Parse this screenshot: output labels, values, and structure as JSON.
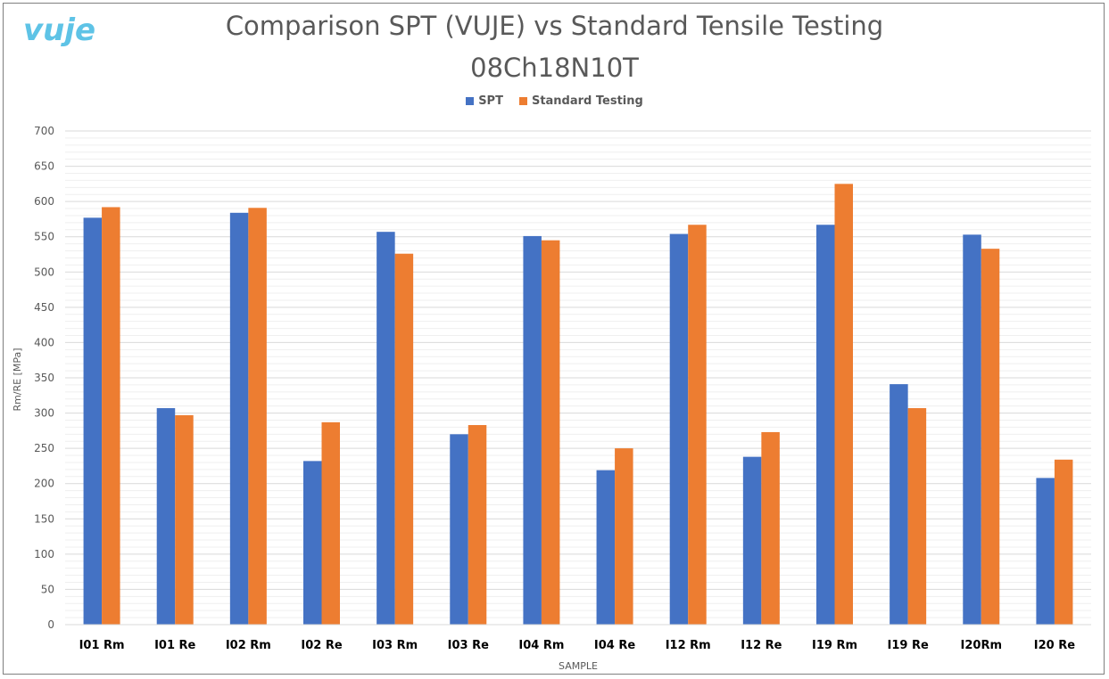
{
  "logo": {
    "text": "vuje"
  },
  "colors": {
    "spt": "#4472C4",
    "standard": "#ED7D31",
    "logo": "#5EC3E6",
    "text": "#595959",
    "grid": "#D9D9D9"
  },
  "chart_data": {
    "type": "bar",
    "title": "Comparison SPT (VUJE) vs Standard Tensile Testing",
    "subtitle": "08Ch18N10T",
    "xlabel": "SAMPLE",
    "ylabel": "Rm/RE [MPa]",
    "ylim": [
      0,
      700
    ],
    "y_ticks": [
      0,
      50,
      100,
      150,
      200,
      250,
      300,
      350,
      400,
      450,
      500,
      550,
      600,
      650,
      700
    ],
    "grid": true,
    "legend_position": "top",
    "categories": [
      "I01 Rm",
      "I01 Re",
      "I02 Rm",
      "I02 Re",
      "I03 Rm",
      "I03 Re",
      "I04 Rm",
      "I04 Re",
      "I12 Rm",
      "I12 Re",
      "I19 Rm",
      "I19 Re",
      "I20Rm",
      "I20 Re"
    ],
    "series": [
      {
        "name": "SPT",
        "color": "#4472C4",
        "values": [
          577,
          307,
          584,
          232,
          557,
          270,
          551,
          219,
          554,
          238,
          567,
          341,
          553,
          208
        ]
      },
      {
        "name": "Standard Testing",
        "color": "#ED7D31",
        "values": [
          592,
          297,
          591,
          287,
          526,
          283,
          545,
          250,
          567,
          273,
          625,
          307,
          533,
          234
        ]
      }
    ]
  }
}
